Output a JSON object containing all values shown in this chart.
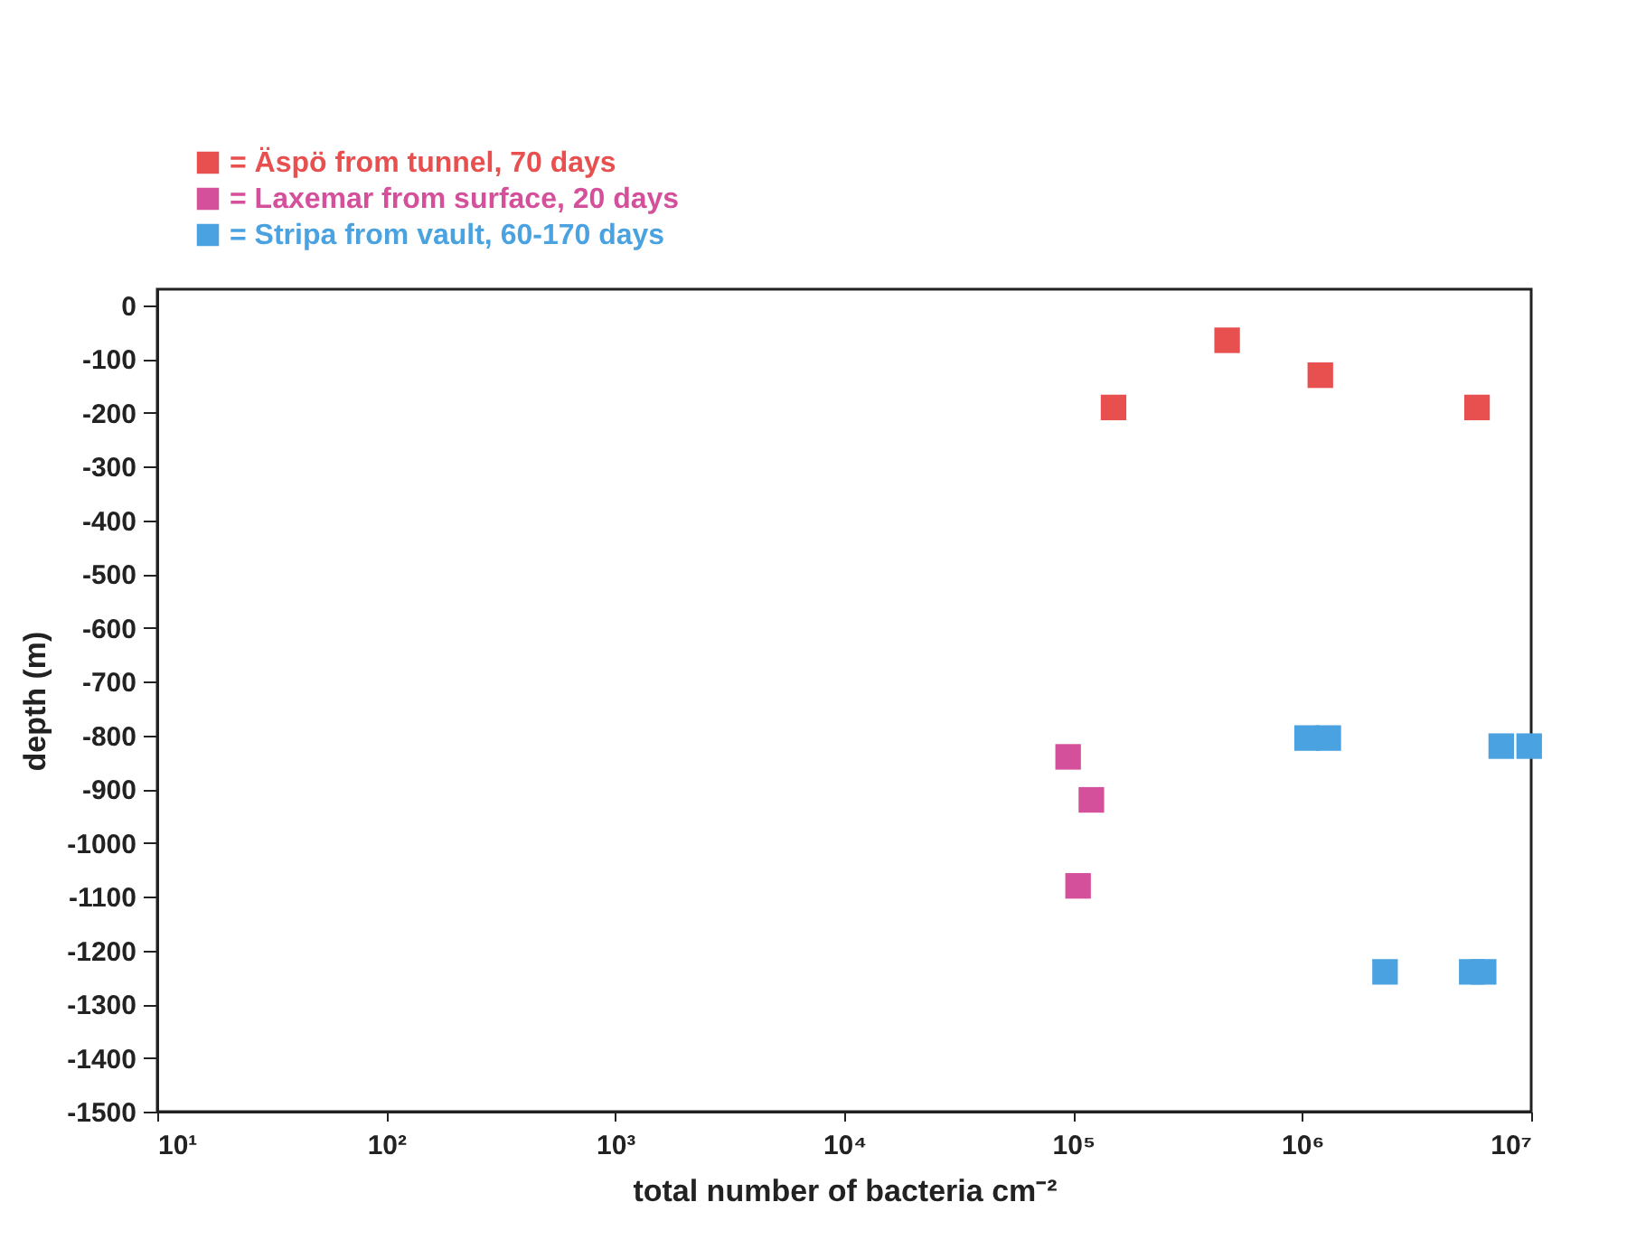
{
  "chart_data": {
    "type": "scatter",
    "xlabel": "total number of bacteria cm⁻²",
    "ylabel": "depth (m)",
    "log": "x",
    "grid": false,
    "legend": "top left",
    "marker": "square",
    "xlim": [
      10,
      10000000
    ],
    "ylim": [
      -1500,
      30
    ],
    "xticks": [
      {
        "value": 10,
        "label": "10¹"
      },
      {
        "value": 100,
        "label": "10²"
      },
      {
        "value": 1000,
        "label": "10³"
      },
      {
        "value": 10000,
        "label": "10⁴"
      },
      {
        "value": 100000,
        "label": "10⁵"
      },
      {
        "value": 1000000,
        "label": "10⁶"
      },
      {
        "value": 10000000,
        "label": "10⁷"
      }
    ],
    "yticks": [
      0,
      -100,
      -200,
      -300,
      -400,
      -500,
      -600,
      -700,
      -800,
      -900,
      -1000,
      -1100,
      -1200,
      -1300,
      -1400,
      -1500
    ],
    "series": [
      {
        "name": "= Äspö from tunnel, 70 days",
        "color": "#e8504f",
        "x": [
          150000,
          470000,
          1200000,
          5800000
        ],
        "values": [
          -190,
          -65,
          -130,
          -190
        ]
      },
      {
        "name": "= Laxemar from surface, 20 days",
        "color": "#d4509a",
        "x": [
          95000,
          120000,
          105000
        ],
        "values": [
          -840,
          -920,
          -1080
        ]
      },
      {
        "name": "= Stripa from vault, 60-170 days",
        "color": "#4aa3e0",
        "x": [
          1050000,
          1300000,
          7400000,
          9800000,
          2300000,
          5500000,
          6200000
        ],
        "values": [
          -805,
          -805,
          -820,
          -820,
          -1240,
          -1240,
          -1240
        ]
      }
    ]
  }
}
